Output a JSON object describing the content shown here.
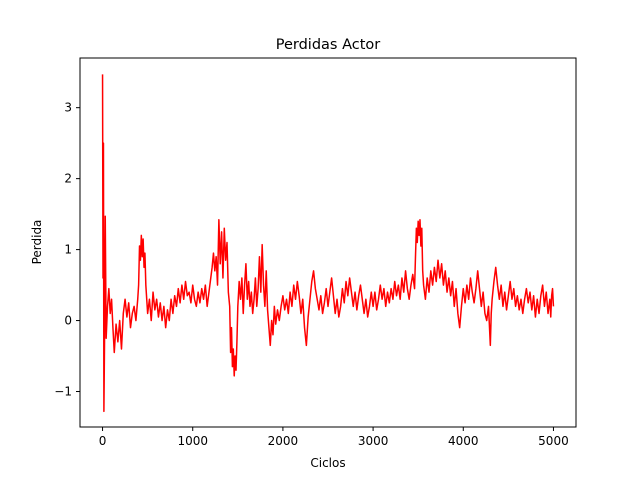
{
  "chart_data": {
    "type": "line",
    "title": "Perdidas Actor",
    "xlabel": "Ciclos",
    "ylabel": "Perdida",
    "xlim": [
      -250,
      5250
    ],
    "ylim": [
      -1.5,
      3.7
    ],
    "xticks": [
      0,
      1000,
      2000,
      3000,
      4000,
      5000
    ],
    "yticks": [
      -1,
      0,
      1,
      2,
      3
    ],
    "xtick_labels": [
      "0",
      "1000",
      "2000",
      "3000",
      "4000",
      "5000"
    ],
    "ytick_labels": [
      "−1",
      "0",
      "1",
      "2",
      "3"
    ],
    "grid": false,
    "legend": "none",
    "series": [
      {
        "color": "#ff0000",
        "points": [
          [
            0,
            3.47
          ],
          [
            5,
            0.6
          ],
          [
            10,
            2.5
          ],
          [
            15,
            -1.28
          ],
          [
            22,
            -0.3
          ],
          [
            30,
            1.47
          ],
          [
            40,
            -0.25
          ],
          [
            55,
            0.2
          ],
          [
            70,
            0.45
          ],
          [
            85,
            0.1
          ],
          [
            100,
            0.3
          ],
          [
            115,
            -0.1
          ],
          [
            130,
            -0.45
          ],
          [
            150,
            -0.05
          ],
          [
            170,
            -0.3
          ],
          [
            190,
            0.0
          ],
          [
            210,
            -0.4
          ],
          [
            230,
            0.1
          ],
          [
            250,
            0.3
          ],
          [
            270,
            0.05
          ],
          [
            290,
            0.25
          ],
          [
            310,
            -0.1
          ],
          [
            330,
            0.1
          ],
          [
            350,
            0.2
          ],
          [
            370,
            0.0
          ],
          [
            390,
            0.3
          ],
          [
            400,
            0.5
          ],
          [
            410,
            1.05
          ],
          [
            420,
            0.85
          ],
          [
            430,
            1.2
          ],
          [
            440,
            0.9
          ],
          [
            450,
            1.15
          ],
          [
            460,
            0.75
          ],
          [
            470,
            0.95
          ],
          [
            480,
            0.5
          ],
          [
            490,
            0.3
          ],
          [
            500,
            0.1
          ],
          [
            520,
            0.3
          ],
          [
            540,
            0.0
          ],
          [
            560,
            0.4
          ],
          [
            580,
            0.15
          ],
          [
            600,
            0.3
          ],
          [
            620,
            0.05
          ],
          [
            640,
            0.25
          ],
          [
            660,
            0.0
          ],
          [
            680,
            0.2
          ],
          [
            700,
            -0.1
          ],
          [
            720,
            0.15
          ],
          [
            740,
            0.0
          ],
          [
            760,
            0.3
          ],
          [
            780,
            0.1
          ],
          [
            800,
            0.35
          ],
          [
            820,
            0.2
          ],
          [
            840,
            0.45
          ],
          [
            860,
            0.25
          ],
          [
            880,
            0.5
          ],
          [
            900,
            0.3
          ],
          [
            920,
            0.55
          ],
          [
            940,
            0.35
          ],
          [
            960,
            0.4
          ],
          [
            980,
            0.25
          ],
          [
            1000,
            0.5
          ],
          [
            1020,
            0.3
          ],
          [
            1040,
            0.2
          ],
          [
            1060,
            0.4
          ],
          [
            1080,
            0.25
          ],
          [
            1100,
            0.45
          ],
          [
            1120,
            0.3
          ],
          [
            1140,
            0.5
          ],
          [
            1160,
            0.2
          ],
          [
            1180,
            0.4
          ],
          [
            1200,
            0.6
          ],
          [
            1215,
            0.75
          ],
          [
            1230,
            0.95
          ],
          [
            1245,
            0.7
          ],
          [
            1260,
            0.9
          ],
          [
            1275,
            0.5
          ],
          [
            1290,
            1.42
          ],
          [
            1305,
            0.8
          ],
          [
            1320,
            1.25
          ],
          [
            1335,
            0.6
          ],
          [
            1350,
            1.3
          ],
          [
            1365,
            0.85
          ],
          [
            1380,
            1.1
          ],
          [
            1395,
            0.4
          ],
          [
            1410,
            0.2
          ],
          [
            1420,
            -0.45
          ],
          [
            1430,
            -0.1
          ],
          [
            1440,
            -0.65
          ],
          [
            1450,
            -0.4
          ],
          [
            1460,
            -0.78
          ],
          [
            1470,
            -0.5
          ],
          [
            1480,
            -0.7
          ],
          [
            1490,
            -0.3
          ],
          [
            1500,
            0.2
          ],
          [
            1515,
            0.55
          ],
          [
            1530,
            0.3
          ],
          [
            1545,
            0.6
          ],
          [
            1560,
            0.1
          ],
          [
            1575,
            0.5
          ],
          [
            1590,
            0.8
          ],
          [
            1605,
            0.3
          ],
          [
            1620,
            0.55
          ],
          [
            1635,
            0.2
          ],
          [
            1650,
            0.4
          ],
          [
            1665,
            0.1
          ],
          [
            1680,
            0.3
          ],
          [
            1695,
            0.6
          ],
          [
            1710,
            0.2
          ],
          [
            1725,
            0.45
          ],
          [
            1740,
            0.9
          ],
          [
            1755,
            0.4
          ],
          [
            1770,
            1.07
          ],
          [
            1785,
            0.5
          ],
          [
            1800,
            0.2
          ],
          [
            1815,
            0.7
          ],
          [
            1830,
            0.15
          ],
          [
            1845,
            -0.1
          ],
          [
            1860,
            -0.35
          ],
          [
            1875,
            0.0
          ],
          [
            1890,
            -0.2
          ],
          [
            1905,
            0.2
          ],
          [
            1920,
            -0.05
          ],
          [
            1940,
            0.15
          ],
          [
            1960,
            0.0
          ],
          [
            1980,
            0.2
          ],
          [
            2000,
            0.35
          ],
          [
            2020,
            0.15
          ],
          [
            2040,
            0.3
          ],
          [
            2060,
            0.1
          ],
          [
            2080,
            0.4
          ],
          [
            2100,
            0.2
          ],
          [
            2120,
            0.5
          ],
          [
            2140,
            0.3
          ],
          [
            2160,
            0.55
          ],
          [
            2180,
            0.35
          ],
          [
            2200,
            0.1
          ],
          [
            2220,
            0.3
          ],
          [
            2240,
            -0.1
          ],
          [
            2260,
            -0.35
          ],
          [
            2280,
            0.05
          ],
          [
            2300,
            0.3
          ],
          [
            2320,
            0.55
          ],
          [
            2340,
            0.7
          ],
          [
            2360,
            0.45
          ],
          [
            2380,
            0.3
          ],
          [
            2400,
            0.15
          ],
          [
            2420,
            0.35
          ],
          [
            2440,
            0.1
          ],
          [
            2460,
            0.25
          ],
          [
            2480,
            0.45
          ],
          [
            2500,
            0.2
          ],
          [
            2520,
            0.4
          ],
          [
            2540,
            0.6
          ],
          [
            2560,
            0.35
          ],
          [
            2580,
            0.1
          ],
          [
            2600,
            0.3
          ],
          [
            2620,
            0.05
          ],
          [
            2640,
            0.2
          ],
          [
            2660,
            0.45
          ],
          [
            2680,
            0.25
          ],
          [
            2700,
            0.55
          ],
          [
            2720,
            0.35
          ],
          [
            2740,
            0.6
          ],
          [
            2760,
            0.4
          ],
          [
            2780,
            0.2
          ],
          [
            2800,
            0.4
          ],
          [
            2820,
            0.15
          ],
          [
            2840,
            0.35
          ],
          [
            2860,
            0.5
          ],
          [
            2880,
            0.3
          ],
          [
            2900,
            0.1
          ],
          [
            2920,
            0.3
          ],
          [
            2940,
            0.05
          ],
          [
            2960,
            0.2
          ],
          [
            2980,
            0.4
          ],
          [
            3000,
            0.2
          ],
          [
            3020,
            0.4
          ],
          [
            3040,
            0.15
          ],
          [
            3060,
            0.3
          ],
          [
            3080,
            0.5
          ],
          [
            3100,
            0.3
          ],
          [
            3120,
            0.45
          ],
          [
            3140,
            0.2
          ],
          [
            3160,
            0.4
          ],
          [
            3180,
            0.25
          ],
          [
            3200,
            0.45
          ],
          [
            3220,
            0.3
          ],
          [
            3240,
            0.55
          ],
          [
            3260,
            0.35
          ],
          [
            3280,
            0.5
          ],
          [
            3300,
            0.3
          ],
          [
            3320,
            0.6
          ],
          [
            3340,
            0.4
          ],
          [
            3360,
            0.7
          ],
          [
            3380,
            0.45
          ],
          [
            3400,
            0.3
          ],
          [
            3420,
            0.5
          ],
          [
            3440,
            0.65
          ],
          [
            3460,
            0.45
          ],
          [
            3470,
            0.9
          ],
          [
            3480,
            1.3
          ],
          [
            3490,
            1.1
          ],
          [
            3500,
            1.4
          ],
          [
            3510,
            1.2
          ],
          [
            3520,
            1.42
          ],
          [
            3530,
            1.05
          ],
          [
            3540,
            1.3
          ],
          [
            3550,
            0.7
          ],
          [
            3560,
            0.5
          ],
          [
            3580,
            0.3
          ],
          [
            3600,
            0.6
          ],
          [
            3620,
            0.4
          ],
          [
            3640,
            0.7
          ],
          [
            3660,
            0.5
          ],
          [
            3680,
            0.75
          ],
          [
            3700,
            0.55
          ],
          [
            3720,
            0.85
          ],
          [
            3740,
            0.6
          ],
          [
            3760,
            0.8
          ],
          [
            3780,
            0.5
          ],
          [
            3800,
            0.7
          ],
          [
            3820,
            0.4
          ],
          [
            3840,
            0.6
          ],
          [
            3860,
            0.35
          ],
          [
            3880,
            0.55
          ],
          [
            3900,
            0.2
          ],
          [
            3920,
            0.45
          ],
          [
            3940,
            0.1
          ],
          [
            3960,
            -0.1
          ],
          [
            3980,
            0.2
          ],
          [
            4000,
            0.45
          ],
          [
            4020,
            0.25
          ],
          [
            4040,
            0.5
          ],
          [
            4060,
            0.3
          ],
          [
            4080,
            0.6
          ],
          [
            4100,
            0.4
          ],
          [
            4120,
            0.25
          ],
          [
            4140,
            0.45
          ],
          [
            4160,
            0.7
          ],
          [
            4180,
            0.45
          ],
          [
            4200,
            0.2
          ],
          [
            4220,
            0.4
          ],
          [
            4240,
            0.1
          ],
          [
            4260,
            0.0
          ],
          [
            4280,
            0.2
          ],
          [
            4300,
            -0.35
          ],
          [
            4310,
            0.1
          ],
          [
            4320,
            0.3
          ],
          [
            4340,
            0.55
          ],
          [
            4360,
            0.75
          ],
          [
            4380,
            0.5
          ],
          [
            4400,
            0.3
          ],
          [
            4420,
            0.5
          ],
          [
            4440,
            0.2
          ],
          [
            4460,
            0.4
          ],
          [
            4480,
            0.15
          ],
          [
            4500,
            0.35
          ],
          [
            4520,
            0.55
          ],
          [
            4540,
            0.3
          ],
          [
            4560,
            0.45
          ],
          [
            4580,
            0.2
          ],
          [
            4600,
            0.35
          ],
          [
            4620,
            0.15
          ],
          [
            4640,
            0.3
          ],
          [
            4660,
            0.1
          ],
          [
            4680,
            0.3
          ],
          [
            4700,
            0.45
          ],
          [
            4720,
            0.25
          ],
          [
            4740,
            0.4
          ],
          [
            4760,
            0.15
          ],
          [
            4780,
            0.35
          ],
          [
            4800,
            0.05
          ],
          [
            4820,
            0.3
          ],
          [
            4840,
            0.1
          ],
          [
            4860,
            0.35
          ],
          [
            4880,
            0.5
          ],
          [
            4900,
            0.2
          ],
          [
            4920,
            0.4
          ],
          [
            4940,
            0.1
          ],
          [
            4960,
            0.3
          ],
          [
            4970,
            0.05
          ],
          [
            4980,
            0.35
          ],
          [
            4990,
            0.45
          ],
          [
            5000,
            0.2
          ]
        ]
      }
    ]
  }
}
